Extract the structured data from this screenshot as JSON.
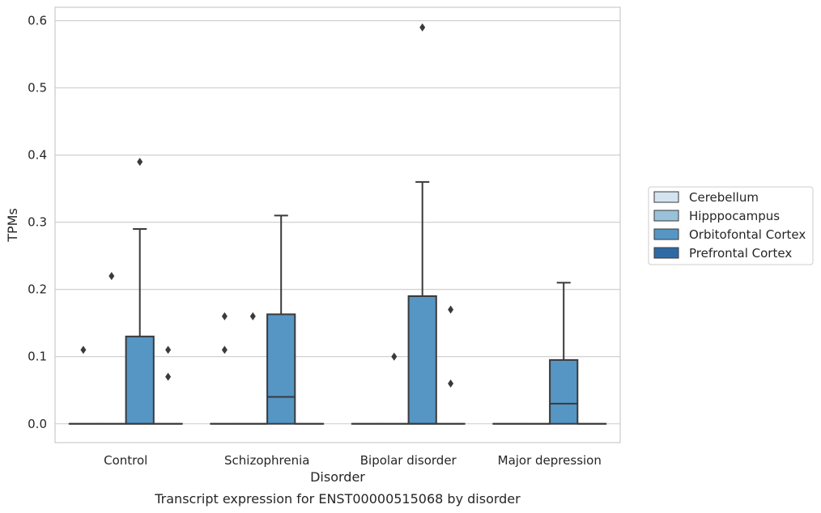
{
  "chart_data": {
    "type": "box",
    "title": "",
    "caption": "Transcript expression for ENST00000515068 by disorder",
    "xlabel": "Disorder",
    "ylabel": "TPMs",
    "ylim": [
      -0.028,
      0.62
    ],
    "yticks": [
      0.0,
      0.1,
      0.2,
      0.3,
      0.4,
      0.5,
      0.6
    ],
    "ytick_labels": [
      "0.0",
      "0.1",
      "0.2",
      "0.3",
      "0.4",
      "0.5",
      "0.6"
    ],
    "grid": "horizontal",
    "legend_position": "right",
    "categories": [
      "Control",
      "Schizophrenia",
      "Bipolar disorder",
      "Major depression"
    ],
    "series": [
      {
        "name": "Cerebellum",
        "color": "#d3e3f0",
        "boxes": [
          {
            "q1": 0,
            "median": 0,
            "q3": 0,
            "whisker_low": 0,
            "whisker_high": 0,
            "outliers": [
              0.11
            ]
          },
          {
            "q1": 0,
            "median": 0,
            "q3": 0,
            "whisker_low": 0,
            "whisker_high": 0,
            "outliers": [
              0.11,
              0.16
            ]
          },
          {
            "q1": 0,
            "median": 0,
            "q3": 0,
            "whisker_low": 0,
            "whisker_high": 0,
            "outliers": []
          },
          {
            "q1": 0,
            "median": 0,
            "q3": 0,
            "whisker_low": 0,
            "whisker_high": 0,
            "outliers": []
          }
        ]
      },
      {
        "name": "Hipppocampus",
        "color": "#9ac1da",
        "boxes": [
          {
            "q1": 0,
            "median": 0,
            "q3": 0,
            "whisker_low": 0,
            "whisker_high": 0,
            "outliers": [
              0.22
            ]
          },
          {
            "q1": 0,
            "median": 0,
            "q3": 0,
            "whisker_low": 0,
            "whisker_high": 0,
            "outliers": [
              0.16
            ]
          },
          {
            "q1": 0,
            "median": 0,
            "q3": 0,
            "whisker_low": 0,
            "whisker_high": 0,
            "outliers": [
              0.1
            ]
          },
          {
            "q1": 0,
            "median": 0,
            "q3": 0,
            "whisker_low": 0,
            "whisker_high": 0,
            "outliers": []
          }
        ]
      },
      {
        "name": "Orbitofontal Cortex",
        "color": "#5596c4",
        "boxes": [
          {
            "q1": 0,
            "median": 0,
            "q3": 0.13,
            "whisker_low": 0,
            "whisker_high": 0.29,
            "outliers": [
              0.39
            ]
          },
          {
            "q1": 0,
            "median": 0.04,
            "q3": 0.163,
            "whisker_low": 0,
            "whisker_high": 0.31,
            "outliers": []
          },
          {
            "q1": 0,
            "median": 0,
            "q3": 0.19,
            "whisker_low": 0,
            "whisker_high": 0.36,
            "outliers": [
              0.59
            ]
          },
          {
            "q1": 0,
            "median": 0.03,
            "q3": 0.095,
            "whisker_low": 0,
            "whisker_high": 0.21,
            "outliers": []
          }
        ]
      },
      {
        "name": "Prefrontal Cortex",
        "color": "#2d6aa5",
        "boxes": [
          {
            "q1": 0,
            "median": 0,
            "q3": 0,
            "whisker_low": 0,
            "whisker_high": 0,
            "outliers": [
              0.11,
              0.07
            ]
          },
          {
            "q1": 0,
            "median": 0,
            "q3": 0,
            "whisker_low": 0,
            "whisker_high": 0,
            "outliers": []
          },
          {
            "q1": 0,
            "median": 0,
            "q3": 0,
            "whisker_low": 0,
            "whisker_high": 0,
            "outliers": [
              0.17,
              0.06
            ]
          },
          {
            "q1": 0,
            "median": 0,
            "q3": 0,
            "whisker_low": 0,
            "whisker_high": 0,
            "outliers": []
          }
        ]
      }
    ]
  },
  "colors": {
    "grid": "#cccccc",
    "frame": "#cccccc",
    "box_edge": "#3a3a3a"
  }
}
